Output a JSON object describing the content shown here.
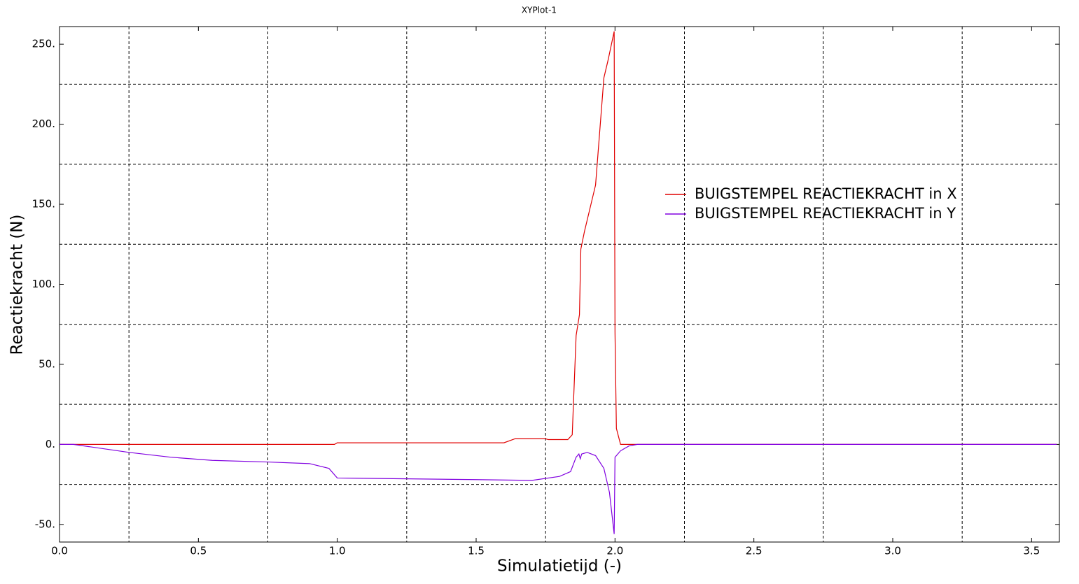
{
  "chart_data": {
    "type": "line",
    "title": "XYPlot-1",
    "x_label": "Simulatietijd (-)",
    "y_label": "Reactiekracht (N)",
    "xlim": [
      0,
      3.6
    ],
    "ylim": [
      -61,
      261
    ],
    "xticks": [
      {
        "value": 0,
        "label": "0.0"
      },
      0.5,
      {
        "value": 1,
        "label": "1.0"
      },
      1.5,
      {
        "value": 2,
        "label": "2.0"
      },
      2.5,
      {
        "value": 3,
        "label": "3.0"
      },
      3.5
    ],
    "yticks": [
      {
        "value": -50,
        "label": "-50."
      },
      {
        "value": 0,
        "label": "0."
      },
      {
        "value": 50,
        "label": "50."
      },
      {
        "value": 100,
        "label": "100."
      },
      {
        "value": 150,
        "label": "150."
      },
      {
        "value": 200,
        "label": "200."
      },
      {
        "value": 250,
        "label": "250."
      }
    ],
    "x_grid": [
      0.25,
      0.75,
      1.25,
      1.75,
      2.25,
      2.75,
      3.25
    ],
    "y_grid": [
      -25,
      25,
      75,
      125,
      175,
      225
    ],
    "legend_position": "right",
    "series": [
      {
        "name": "BUIGSTEMPEL REACTIEKRACHT in X",
        "color": "#e00000",
        "x": [
          0,
          0.99,
          1.0,
          1.6,
          1.64,
          1.75,
          1.76,
          1.83,
          1.846,
          1.86,
          1.872,
          1.877,
          1.89,
          1.93,
          1.96,
          1.975,
          1.997,
          2.0,
          2.005,
          2.02,
          3.59
        ],
        "values": [
          0,
          0,
          1,
          1,
          3.5,
          3.5,
          3,
          3,
          6,
          68,
          81,
          122,
          133,
          162,
          229,
          240,
          258,
          70,
          10,
          0,
          0
        ]
      },
      {
        "name": "BUIGSTEMPEL REACTIEKRACHT in Y",
        "color": "#8000e0",
        "x": [
          0,
          0.05,
          0.25,
          0.4,
          0.55,
          0.75,
          0.9,
          0.97,
          1.0,
          1.5,
          1.7,
          1.8,
          1.84,
          1.86,
          1.87,
          1.875,
          1.88,
          1.9,
          1.93,
          1.96,
          1.98,
          1.997,
          2.0,
          2.02,
          2.05,
          2.08,
          3.59
        ],
        "values": [
          0,
          0,
          -5,
          -8,
          -10,
          -11,
          -12,
          -15,
          -21,
          -22,
          -22.5,
          -20,
          -17,
          -8,
          -6,
          -9,
          -6,
          -5,
          -7,
          -15,
          -30,
          -56,
          -8,
          -4,
          -1,
          0,
          0
        ]
      }
    ]
  }
}
